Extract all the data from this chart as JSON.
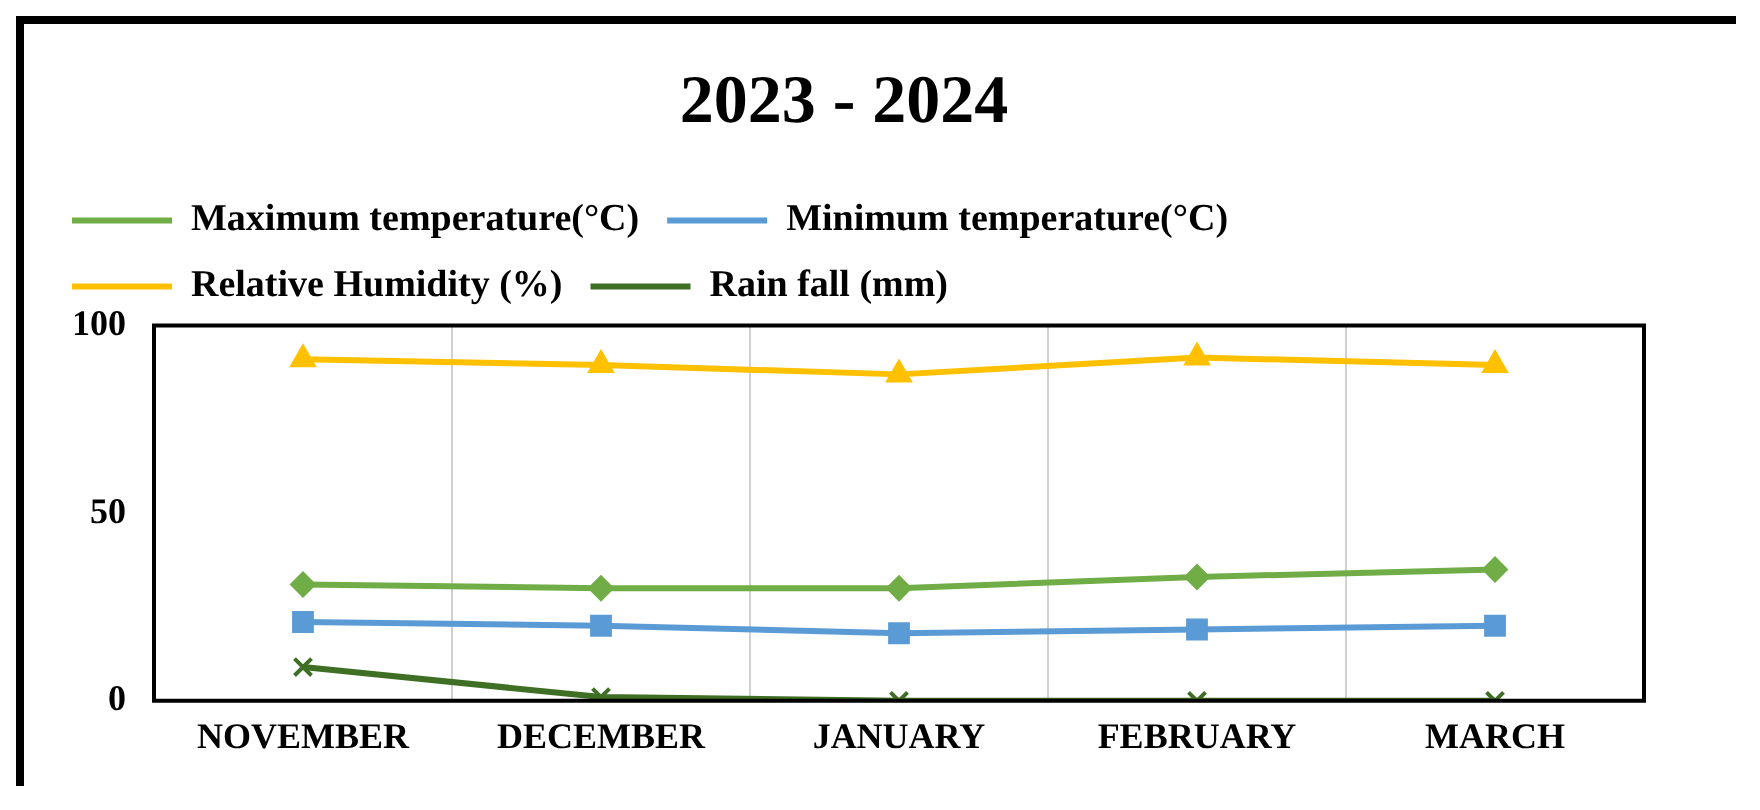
{
  "chart_data": {
    "type": "line",
    "title": "2023 - 2024",
    "categories": [
      "NOVEMBER",
      "DECEMBER",
      "JANUARY",
      "FEBRUARY",
      "MARCH"
    ],
    "series": [
      {
        "name": "Maximum temperature(°C)",
        "color": "#70ad47",
        "marker": "diamond",
        "values": [
          31,
          30,
          30,
          33,
          35
        ]
      },
      {
        "name": "Minimum temperature(°C)",
        "color": "#5b9bd5",
        "marker": "square",
        "values": [
          21,
          20,
          18,
          19,
          20
        ]
      },
      {
        "name": "Relative Humidity (%)",
        "color": "#ffc000",
        "marker": "triangle",
        "values": [
          91,
          89.5,
          87,
          91.5,
          89.5
        ]
      },
      {
        "name": "Rain fall (mm)",
        "color": "#3f6f24",
        "marker": "cross",
        "values": [
          9,
          1,
          0,
          0,
          0
        ]
      }
    ],
    "ylim": [
      0,
      100
    ],
    "yticks": [
      0,
      50,
      100
    ],
    "grid": "x",
    "legend": "top"
  }
}
